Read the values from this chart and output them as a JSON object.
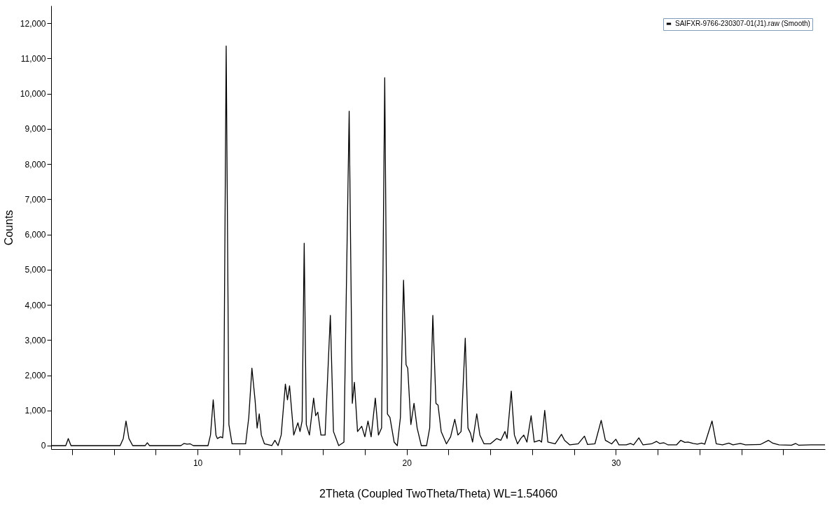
{
  "chart_data": {
    "type": "line",
    "xlabel": "2Theta (Coupled TwoTheta/Theta) WL=1.54060",
    "ylabel": "Counts",
    "legend": "top right",
    "xlim": [
      3,
      40
    ],
    "ylim": [
      -100,
      12500
    ],
    "xticks": [
      {
        "value": 4,
        "label": null
      },
      {
        "value": 6,
        "label": null
      },
      {
        "value": 8,
        "label": null
      },
      10,
      {
        "value": 12,
        "label": null
      },
      {
        "value": 14,
        "label": null
      },
      {
        "value": 16,
        "label": null
      },
      {
        "value": 18,
        "label": null
      },
      20,
      {
        "value": 22,
        "label": null
      },
      {
        "value": 24,
        "label": null
      },
      {
        "value": 26,
        "label": null
      },
      {
        "value": 28,
        "label": null
      },
      30,
      {
        "value": 32,
        "label": null
      },
      {
        "value": 34,
        "label": null
      },
      {
        "value": 36,
        "label": null
      },
      {
        "value": 38,
        "label": null
      }
    ],
    "yticks": [
      0,
      {
        "value": 1000,
        "label": "1,000"
      },
      {
        "value": 2000,
        "label": "2,000"
      },
      {
        "value": 3000,
        "label": "3,000"
      },
      {
        "value": 4000,
        "label": "4,000"
      },
      {
        "value": 5000,
        "label": "5,000"
      },
      {
        "value": 6000,
        "label": "6,000"
      },
      {
        "value": 7000,
        "label": "7,000"
      },
      {
        "value": 8000,
        "label": "8,000"
      },
      {
        "value": 9000,
        "label": "9,000"
      },
      {
        "value": 10000,
        "label": "10,000"
      },
      {
        "value": 11000,
        "label": "11,000"
      },
      {
        "value": 12000,
        "label": "12,000"
      }
    ],
    "x": [
      3.0,
      3.7,
      3.82,
      3.95,
      6.3,
      6.45,
      6.58,
      6.72,
      6.9,
      7.5,
      7.6,
      7.7,
      9.2,
      9.35,
      9.5,
      9.65,
      9.8,
      10.5,
      10.62,
      10.75,
      10.88,
      10.95,
      11.1,
      11.2,
      11.25,
      11.37,
      11.5,
      11.65,
      12.3,
      12.45,
      12.6,
      12.75,
      12.85,
      12.95,
      13.05,
      13.2,
      13.55,
      13.7,
      13.85,
      14.0,
      14.2,
      14.3,
      14.4,
      14.6,
      14.8,
      14.9,
      15.0,
      15.1,
      15.2,
      15.35,
      15.55,
      15.65,
      15.75,
      15.9,
      16.1,
      16.35,
      16.5,
      16.75,
      17.0,
      17.25,
      17.4,
      17.5,
      17.65,
      17.85,
      18.0,
      18.15,
      18.3,
      18.5,
      18.65,
      18.8,
      18.95,
      19.08,
      19.2,
      19.4,
      19.55,
      19.7,
      19.85,
      19.97,
      20.05,
      20.2,
      20.35,
      20.5,
      20.7,
      20.95,
      21.1,
      21.25,
      21.4,
      21.5,
      21.65,
      21.9,
      22.1,
      22.3,
      22.45,
      22.6,
      22.8,
      22.93,
      23.05,
      23.15,
      23.35,
      23.5,
      23.7,
      24.0,
      24.3,
      24.5,
      24.7,
      24.8,
      25.0,
      25.15,
      25.3,
      25.45,
      25.6,
      25.75,
      25.95,
      26.1,
      26.35,
      26.45,
      26.6,
      26.75,
      27.1,
      27.4,
      27.55,
      27.8,
      28.2,
      28.5,
      28.65,
      29.0,
      29.3,
      29.5,
      29.8,
      30.0,
      30.15,
      30.5,
      30.7,
      30.85,
      31.1,
      31.3,
      31.7,
      31.95,
      32.1,
      32.3,
      32.5,
      32.7,
      32.9,
      33.1,
      33.3,
      33.45,
      33.7,
      33.9,
      34.1,
      34.25,
      34.6,
      34.8,
      35.1,
      35.4,
      35.6,
      35.95,
      36.2,
      36.9,
      37.3,
      37.5,
      37.8,
      38.4,
      38.6,
      38.75,
      39.3,
      40
    ],
    "series": [
      {
        "name": "SAIFXR-9766-230307-01(J1).raw (Smooth)",
        "color": "#000000",
        "values": [
          0,
          0,
          200,
          0,
          0,
          200,
          700,
          200,
          0,
          0,
          80,
          0,
          0,
          60,
          40,
          50,
          0,
          0,
          300,
          1300,
          300,
          200,
          250,
          220,
          600,
          11350,
          600,
          50,
          50,
          800,
          2200,
          1300,
          500,
          900,
          300,
          50,
          0,
          150,
          0,
          300,
          1750,
          1300,
          1700,
          300,
          650,
          400,
          700,
          5750,
          600,
          300,
          1350,
          850,
          950,
          300,
          300,
          3700,
          400,
          0,
          100,
          9500,
          1200,
          1800,
          400,
          550,
          250,
          700,
          250,
          1350,
          300,
          500,
          10450,
          900,
          800,
          100,
          0,
          800,
          4700,
          2300,
          2200,
          600,
          1200,
          500,
          0,
          0,
          500,
          3700,
          1200,
          1150,
          400,
          50,
          250,
          750,
          300,
          400,
          3050,
          500,
          350,
          100,
          900,
          300,
          50,
          50,
          200,
          150,
          400,
          200,
          1550,
          300,
          50,
          200,
          300,
          100,
          850,
          100,
          150,
          100,
          1000,
          100,
          50,
          320,
          150,
          20,
          50,
          270,
          30,
          50,
          720,
          150,
          50,
          180,
          20,
          20,
          60,
          20,
          220,
          20,
          50,
          120,
          60,
          80,
          20,
          20,
          20,
          150,
          90,
          100,
          60,
          40,
          70,
          40,
          700,
          50,
          20,
          70,
          20,
          60,
          20,
          30,
          150,
          70,
          20,
          10,
          60,
          10,
          20,
          20
        ]
      }
    ]
  }
}
